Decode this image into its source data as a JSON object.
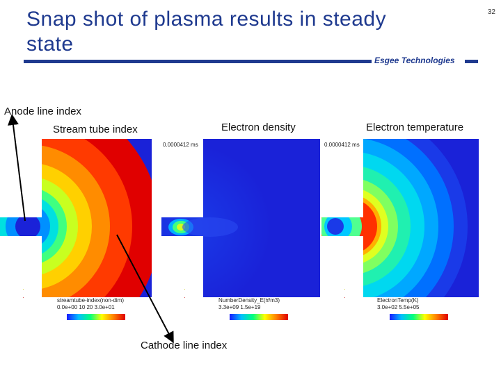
{
  "slide": {
    "title": "Snap shot of plasma results in steady state",
    "page_number": "32",
    "logo_text": "Esgee Technologies"
  },
  "labels": {
    "anode": "Anode line index",
    "stream_tube": "Stream tube index",
    "electron_density": "Electron density",
    "electron_temperature": "Electron temperature",
    "cathode": "Cathode line index"
  },
  "panels": [
    {
      "time": "",
      "variable": "streamtube-index(non-dim)",
      "range_labels": "0.0e+00 10 20 3.0e+01"
    },
    {
      "time": "0.0000412 ms",
      "variable": "NumberDensity_E(#/m3)",
      "range_labels": "3.3e+09 1.5e+19"
    },
    {
      "time": "0.0000412 ms",
      "variable": "ElectronTemp(K)",
      "range_labels": "3.0e+02 5.5e+05"
    }
  ],
  "colors": {
    "title": "#1f3a8f",
    "plot_blue": "#1a22d8",
    "hot_red": "#e00000"
  }
}
